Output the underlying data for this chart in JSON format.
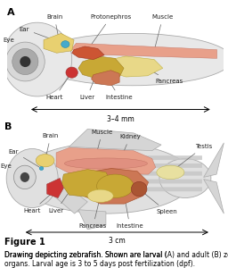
{
  "bg_color": "#ffffff",
  "body_color": "#e8e8e8",
  "body_edge": "#aaaaaa",
  "muscle_color": "#e8a08a",
  "muscle_edge": "#c07060",
  "brain_color": "#e8d070",
  "brain_edge": "#b8a040",
  "liver_color": "#c8a835",
  "liver_edge": "#a08020",
  "heart_color": "#cc3333",
  "heart_edge": "#993333",
  "pancreas_color": "#e8d888",
  "pancreas_edge": "#c0b040",
  "intestine_color": "#cc7755",
  "intestine_edge": "#aa5533",
  "ear_color": "#44aacc",
  "ear_edge": "#2288aa",
  "eye_outer": "#d0d0d0",
  "eye_mid": "#888888",
  "eye_inner": "#444444",
  "spleen_color": "#aa5533",
  "spleen_edge": "#883322",
  "kidney_color": "#e09080",
  "kidney_edge": "#c07060",
  "testis_color": "#e8e0a0",
  "testis_edge": "#c0b860",
  "stripe_color": "#cccccc",
  "fin_color": "#d8d8d8",
  "fin_edge": "#aaaaaa",
  "annotation_color": "#222222",
  "line_color": "#666666",
  "label_fs": 5.0,
  "scale_fs": 5.5,
  "cap_bold_fs": 7.0,
  "cap_fs": 5.5,
  "scale_A": "3–4 mm",
  "scale_B": "3 cm",
  "figure_label": "Figure 1",
  "caption_line1": "Drawing depicting zebrafish. Shown are larval (",
  "caption_bold1": "A",
  "caption_line1b": ") and adult (",
  "caption_bold2": "B",
  "caption_line1c": ") zebrafish",
  "caption_line2": "organs. Larval age is 3 to 5 days post fertilization (dpf)."
}
